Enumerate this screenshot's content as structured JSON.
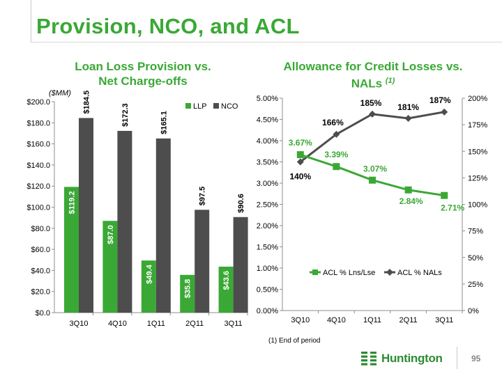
{
  "page": {
    "title": "Provision, NCO, and ACL",
    "footnote": "(1)  End of period",
    "logo_text": "Huntington",
    "page_number": "95"
  },
  "colors": {
    "green": "#3aa835",
    "dark_gray": "#4d4d4d",
    "llp_bar": "#3aa835",
    "nco_bar": "#4d4d4d"
  },
  "chart_data": [
    {
      "type": "bar",
      "title_line1": "Loan Loss Provision vs.",
      "title_line2": "Net Charge-offs",
      "unit_label": "($MM)",
      "categories": [
        "3Q10",
        "4Q10",
        "1Q11",
        "2Q11",
        "3Q11"
      ],
      "series": [
        {
          "name": "LLP",
          "values": [
            119.2,
            87.0,
            49.4,
            35.8,
            43.6
          ],
          "labels": [
            "$119.2",
            "$87.0",
            "$49.4",
            "$35.8",
            "$43.6"
          ]
        },
        {
          "name": "NCO",
          "values": [
            184.5,
            172.3,
            165.1,
            97.5,
            90.6
          ],
          "labels": [
            "$184.5",
            "$172.3",
            "$165.1",
            "$97.5",
            "$90.6"
          ]
        }
      ],
      "ylim": [
        0,
        200
      ],
      "yticks": [
        "$0.0",
        "$20.0",
        "$40.0",
        "$60.0",
        "$80.0",
        "$100.0",
        "$120.0",
        "$140.0",
        "$160.0",
        "$180.0",
        "$200.0"
      ],
      "legend": "top-right"
    },
    {
      "type": "line",
      "title_line1": "Allowance for Credit Losses vs.",
      "title_line2": "NALs",
      "title_note": "(1)",
      "categories": [
        "3Q10",
        "4Q10",
        "1Q11",
        "2Q11",
        "3Q11"
      ],
      "series": [
        {
          "name": "ACL % Lns/Lse",
          "axis": "left",
          "values": [
            3.67,
            3.39,
            3.07,
            2.84,
            2.71
          ],
          "labels": [
            "3.67%",
            "3.39%",
            "3.07%",
            "2.84%",
            "2.71%"
          ]
        },
        {
          "name": "ACL % NALs",
          "axis": "right",
          "values": [
            140,
            166,
            185,
            181,
            187
          ],
          "labels": [
            "140%",
            "166%",
            "185%",
            "181%",
            "187%"
          ]
        }
      ],
      "ylim_left": [
        0,
        5
      ],
      "yticks_left": [
        "0.00%",
        "0.50%",
        "1.00%",
        "1.50%",
        "2.00%",
        "2.50%",
        "3.00%",
        "3.50%",
        "4.00%",
        "4.50%",
        "5.00%"
      ],
      "ylim_right": [
        0,
        200
      ],
      "yticks_right": [
        "0%",
        "25%",
        "50%",
        "75%",
        "100%",
        "125%",
        "150%",
        "175%",
        "200%"
      ],
      "legend": "bottom-center"
    }
  ]
}
